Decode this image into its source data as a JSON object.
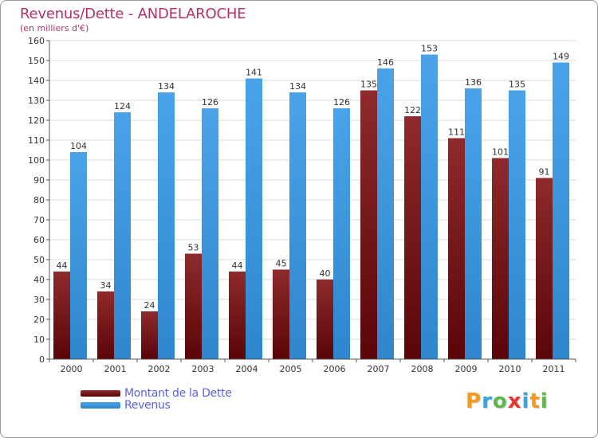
{
  "title": "Revenus/Dette - ANDELAROCHE",
  "subtitle": "(en milliers d'€)",
  "logo": {
    "text": "Proxiti",
    "letters": [
      {
        "char": "P",
        "color": "#f39a1e"
      },
      {
        "char": "r",
        "color": "#3aa3d9"
      },
      {
        "char": "o",
        "color": "#5cb848"
      },
      {
        "char": "x",
        "color": "#e3342f"
      },
      {
        "char": "i",
        "color": "#3aa3d9"
      },
      {
        "char": "t",
        "color": "#f39a1e"
      },
      {
        "char": "i",
        "color": "#5cb848"
      }
    ]
  },
  "chart_data": {
    "type": "bar",
    "title": "Revenus/Dette - ANDELAROCHE",
    "subtitle": "(en milliers d'€)",
    "categories": [
      "2000",
      "2001",
      "2002",
      "2003",
      "2004",
      "2005",
      "2006",
      "2007",
      "2008",
      "2009",
      "2010",
      "2011"
    ],
    "series": [
      {
        "name": "Montant de la Dette",
        "color": "#7a1a1c",
        "values": [
          44,
          34,
          24,
          53,
          44,
          45,
          40,
          135,
          122,
          111,
          101,
          91
        ]
      },
      {
        "name": "Revenus",
        "color": "#3d96dd",
        "values": [
          104,
          124,
          134,
          126,
          141,
          134,
          126,
          146,
          153,
          136,
          135,
          149
        ]
      }
    ],
    "ylim": [
      0,
      160
    ],
    "yticks": [
      0,
      10,
      20,
      30,
      40,
      50,
      60,
      70,
      80,
      90,
      100,
      110,
      120,
      130,
      140,
      150,
      160
    ],
    "grid": true,
    "legend_position": "bottom-left",
    "data_labels": true
  }
}
